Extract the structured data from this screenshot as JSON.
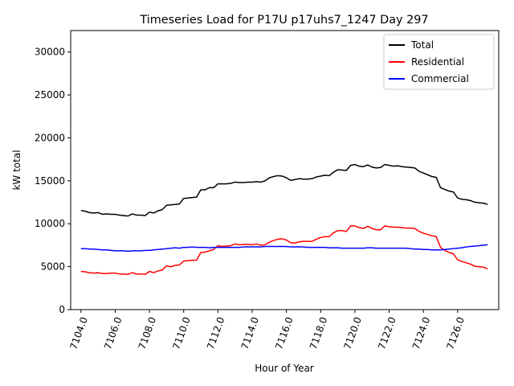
{
  "chart_data": {
    "type": "line",
    "title": "Timeseries Load for P17U p17uhs7_1247  Day 297",
    "xlabel": "Hour of Year",
    "ylabel": "kW total",
    "xlim": [
      7103.4,
      7128.4
    ],
    "ylim": [
      0,
      32500
    ],
    "x_ticks": [
      7104,
      7106,
      7108,
      7110,
      7112,
      7114,
      7116,
      7118,
      7120,
      7122,
      7124,
      7126
    ],
    "x_tick_labels": [
      "7104.0",
      "7106.0",
      "7108.0",
      "7110.0",
      "7112.0",
      "7114.0",
      "7116.0",
      "7118.0",
      "7120.0",
      "7122.0",
      "7124.0",
      "7126.0"
    ],
    "y_ticks": [
      0,
      5000,
      10000,
      15000,
      20000,
      25000,
      30000
    ],
    "y_tick_labels": [
      "0",
      "5000",
      "10000",
      "15000",
      "20000",
      "25000",
      "30000"
    ],
    "legend_position": "top-right",
    "series": [
      {
        "name": "Total",
        "color": "#000000",
        "x": [
          7104.0,
          7104.25,
          7104.5,
          7104.75,
          7105.0,
          7105.25,
          7105.5,
          7105.75,
          7106.0,
          7106.25,
          7106.5,
          7106.75,
          7107.0,
          7107.25,
          7107.5,
          7107.75,
          7108.0,
          7108.25,
          7108.5,
          7108.75,
          7109.0,
          7109.25,
          7109.5,
          7109.75,
          7110.0,
          7110.25,
          7110.5,
          7110.75,
          7111.0,
          7111.25,
          7111.5,
          7111.75,
          7112.0,
          7112.25,
          7112.5,
          7112.75,
          7113.0,
          7113.25,
          7113.5,
          7113.75,
          7114.0,
          7114.25,
          7114.5,
          7114.75,
          7115.0,
          7115.25,
          7115.5,
          7115.75,
          7116.0,
          7116.25,
          7116.5,
          7116.75,
          7117.0,
          7117.25,
          7117.5,
          7117.75,
          7118.0,
          7118.25,
          7118.5,
          7118.75,
          7119.0,
          7119.25,
          7119.5,
          7119.75,
          7120.0,
          7120.25,
          7120.5,
          7120.75,
          7121.0,
          7121.25,
          7121.5,
          7121.75,
          7122.0,
          7122.25,
          7122.5,
          7122.75,
          7123.0,
          7123.25,
          7123.5,
          7123.75,
          7124.0,
          7124.25,
          7124.5,
          7124.75,
          7125.0,
          7125.25,
          7125.5,
          7125.75,
          7126.0,
          7126.25,
          7126.5,
          7126.75,
          7127.0,
          7127.25,
          7127.5,
          7127.75
        ],
        "values": [
          11550,
          11450,
          11300,
          11250,
          11300,
          11100,
          11150,
          11100,
          11100,
          11000,
          10950,
          10900,
          11150,
          11000,
          11000,
          10950,
          11350,
          11250,
          11500,
          11650,
          12150,
          12200,
          12250,
          12300,
          12950,
          13000,
          13050,
          13100,
          13950,
          13950,
          14200,
          14200,
          14650,
          14650,
          14650,
          14700,
          14850,
          14800,
          14800,
          14850,
          14850,
          14900,
          14850,
          15000,
          15350,
          15500,
          15600,
          15550,
          15350,
          15050,
          15150,
          15250,
          15200,
          15200,
          15250,
          15450,
          15550,
          15650,
          15600,
          16000,
          16300,
          16250,
          16200,
          16800,
          16900,
          16700,
          16650,
          16850,
          16600,
          16500,
          16550,
          16900,
          16800,
          16700,
          16750,
          16650,
          16600,
          16550,
          16500,
          16100,
          15900,
          15700,
          15500,
          15400,
          14200,
          14000,
          13800,
          13700,
          13000,
          12850,
          12800,
          12700,
          12500,
          12450,
          12400,
          12250
        ]
      },
      {
        "name": "Residential",
        "color": "#ff0000",
        "x": [
          7104.0,
          7104.25,
          7104.5,
          7104.75,
          7105.0,
          7105.25,
          7105.5,
          7105.75,
          7106.0,
          7106.25,
          7106.5,
          7106.75,
          7107.0,
          7107.25,
          7107.5,
          7107.75,
          7108.0,
          7108.25,
          7108.5,
          7108.75,
          7109.0,
          7109.25,
          7109.5,
          7109.75,
          7110.0,
          7110.25,
          7110.5,
          7110.75,
          7111.0,
          7111.25,
          7111.5,
          7111.75,
          7112.0,
          7112.25,
          7112.5,
          7112.75,
          7113.0,
          7113.25,
          7113.5,
          7113.75,
          7114.0,
          7114.25,
          7114.5,
          7114.75,
          7115.0,
          7115.25,
          7115.5,
          7115.75,
          7116.0,
          7116.25,
          7116.5,
          7116.75,
          7117.0,
          7117.25,
          7117.5,
          7117.75,
          7118.0,
          7118.25,
          7118.5,
          7118.75,
          7119.0,
          7119.25,
          7119.5,
          7119.75,
          7120.0,
          7120.25,
          7120.5,
          7120.75,
          7121.0,
          7121.25,
          7121.5,
          7121.75,
          7122.0,
          7122.25,
          7122.5,
          7122.75,
          7123.0,
          7123.25,
          7123.5,
          7123.75,
          7124.0,
          7124.25,
          7124.5,
          7124.75,
          7125.0,
          7125.25,
          7125.5,
          7125.75,
          7126.0,
          7126.25,
          7126.5,
          7126.75,
          7127.0,
          7127.25,
          7127.5,
          7127.75
        ],
        "values": [
          4450,
          4400,
          4300,
          4250,
          4300,
          4200,
          4200,
          4250,
          4250,
          4150,
          4150,
          4100,
          4300,
          4150,
          4150,
          4100,
          4450,
          4300,
          4500,
          4600,
          5100,
          5000,
          5150,
          5200,
          5650,
          5700,
          5750,
          5750,
          6650,
          6700,
          6850,
          7000,
          7450,
          7350,
          7400,
          7450,
          7650,
          7550,
          7600,
          7600,
          7550,
          7650,
          7500,
          7550,
          7850,
          8050,
          8200,
          8250,
          8100,
          7800,
          7750,
          7900,
          7950,
          7950,
          7950,
          8200,
          8400,
          8500,
          8500,
          8950,
          9200,
          9200,
          9100,
          9750,
          9750,
          9550,
          9450,
          9700,
          9450,
          9300,
          9300,
          9750,
          9650,
          9600,
          9600,
          9550,
          9500,
          9500,
          9450,
          9100,
          8900,
          8750,
          8600,
          8500,
          7250,
          6900,
          6650,
          6500,
          5800,
          5600,
          5450,
          5300,
          5050,
          5000,
          4950,
          4750
        ]
      },
      {
        "name": "Commercial",
        "color": "#0000ff",
        "x": [
          7104.0,
          7104.25,
          7104.5,
          7104.75,
          7105.0,
          7105.25,
          7105.5,
          7105.75,
          7106.0,
          7106.25,
          7106.5,
          7106.75,
          7107.0,
          7107.25,
          7107.5,
          7107.75,
          7108.0,
          7108.25,
          7108.5,
          7108.75,
          7109.0,
          7109.25,
          7109.5,
          7109.75,
          7110.0,
          7110.25,
          7110.5,
          7110.75,
          7111.0,
          7111.25,
          7111.5,
          7111.75,
          7112.0,
          7112.25,
          7112.5,
          7112.75,
          7113.0,
          7113.25,
          7113.5,
          7113.75,
          7114.0,
          7114.25,
          7114.5,
          7114.75,
          7115.0,
          7115.25,
          7115.5,
          7115.75,
          7116.0,
          7116.25,
          7116.5,
          7116.75,
          7117.0,
          7117.25,
          7117.5,
          7117.75,
          7118.0,
          7118.25,
          7118.5,
          7118.75,
          7119.0,
          7119.25,
          7119.5,
          7119.75,
          7120.0,
          7120.25,
          7120.5,
          7120.75,
          7121.0,
          7121.25,
          7121.5,
          7121.75,
          7122.0,
          7122.25,
          7122.5,
          7122.75,
          7123.0,
          7123.25,
          7123.5,
          7123.75,
          7124.0,
          7124.25,
          7124.5,
          7124.75,
          7125.0,
          7125.25,
          7125.5,
          7125.75,
          7126.0,
          7126.25,
          7126.5,
          7126.75,
          7127.0,
          7127.25,
          7127.5,
          7127.75
        ],
        "values": [
          7100,
          7100,
          7050,
          7050,
          7000,
          6950,
          6950,
          6900,
          6850,
          6850,
          6850,
          6800,
          6850,
          6850,
          6850,
          6900,
          6900,
          6950,
          7000,
          7050,
          7100,
          7150,
          7200,
          7150,
          7250,
          7250,
          7300,
          7250,
          7250,
          7250,
          7200,
          7250,
          7250,
          7250,
          7250,
          7250,
          7250,
          7250,
          7300,
          7300,
          7300,
          7300,
          7300,
          7350,
          7350,
          7350,
          7350,
          7350,
          7350,
          7300,
          7300,
          7300,
          7300,
          7250,
          7250,
          7250,
          7250,
          7250,
          7200,
          7200,
          7200,
          7150,
          7150,
          7150,
          7150,
          7150,
          7150,
          7200,
          7200,
          7150,
          7150,
          7150,
          7150,
          7150,
          7150,
          7150,
          7150,
          7100,
          7050,
          7050,
          7000,
          7000,
          6950,
          6950,
          6950,
          7000,
          7050,
          7100,
          7150,
          7200,
          7300,
          7350,
          7400,
          7450,
          7500,
          7550
        ]
      }
    ]
  }
}
